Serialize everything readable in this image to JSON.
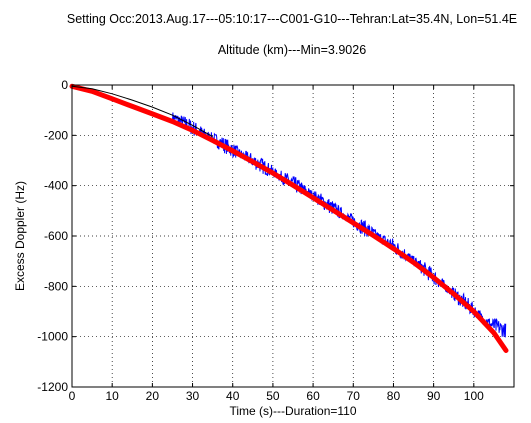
{
  "chart_data": {
    "type": "line",
    "title": "Setting Occ:2013.Aug.17---05:10:17---C001-G10---Tehran:Lat=35.4N, Lon=51.4E",
    "subtitle": "Altitude (km)---Min=3.9026",
    "xlabel": "Time (s)---Duration=110",
    "ylabel": "Excess Doppler (Hz)",
    "xlim": [
      0,
      110
    ],
    "ylim": [
      -1200,
      0
    ],
    "xticks": [
      0,
      10,
      20,
      30,
      40,
      50,
      60,
      70,
      80,
      90,
      100
    ],
    "yticks": [
      0,
      -200,
      -400,
      -600,
      -800,
      -1000,
      -1200
    ],
    "grid": true,
    "series": [
      {
        "color": "#0000ff",
        "style": "noisy",
        "x": [
          25,
          30,
          35,
          40,
          45,
          50,
          55,
          60,
          65,
          70,
          75,
          80,
          85,
          90,
          95,
          100,
          104,
          108
        ],
        "y": [
          -125,
          -170,
          -212,
          -258,
          -300,
          -345,
          -392,
          -438,
          -490,
          -540,
          -590,
          -640,
          -698,
          -762,
          -830,
          -895,
          -950,
          -975
        ]
      },
      {
        "color": "#ff0000",
        "style": "thick",
        "x": [
          0,
          5,
          10,
          15,
          20,
          25,
          30,
          35,
          40,
          45,
          50,
          55,
          60,
          65,
          70,
          75,
          80,
          85,
          90,
          95,
          100,
          105,
          108
        ],
        "y": [
          -5,
          -25,
          -55,
          -85,
          -115,
          -145,
          -180,
          -220,
          -262,
          -305,
          -350,
          -398,
          -448,
          -498,
          -548,
          -598,
          -650,
          -705,
          -765,
          -830,
          -900,
          -985,
          -1055
        ]
      },
      {
        "color": "#000000",
        "style": "thin",
        "x": [
          0,
          5,
          10,
          15,
          20,
          25,
          30,
          35
        ],
        "y": [
          -5,
          -15,
          -35,
          -60,
          -88,
          -120,
          -160,
          -205
        ]
      }
    ]
  }
}
